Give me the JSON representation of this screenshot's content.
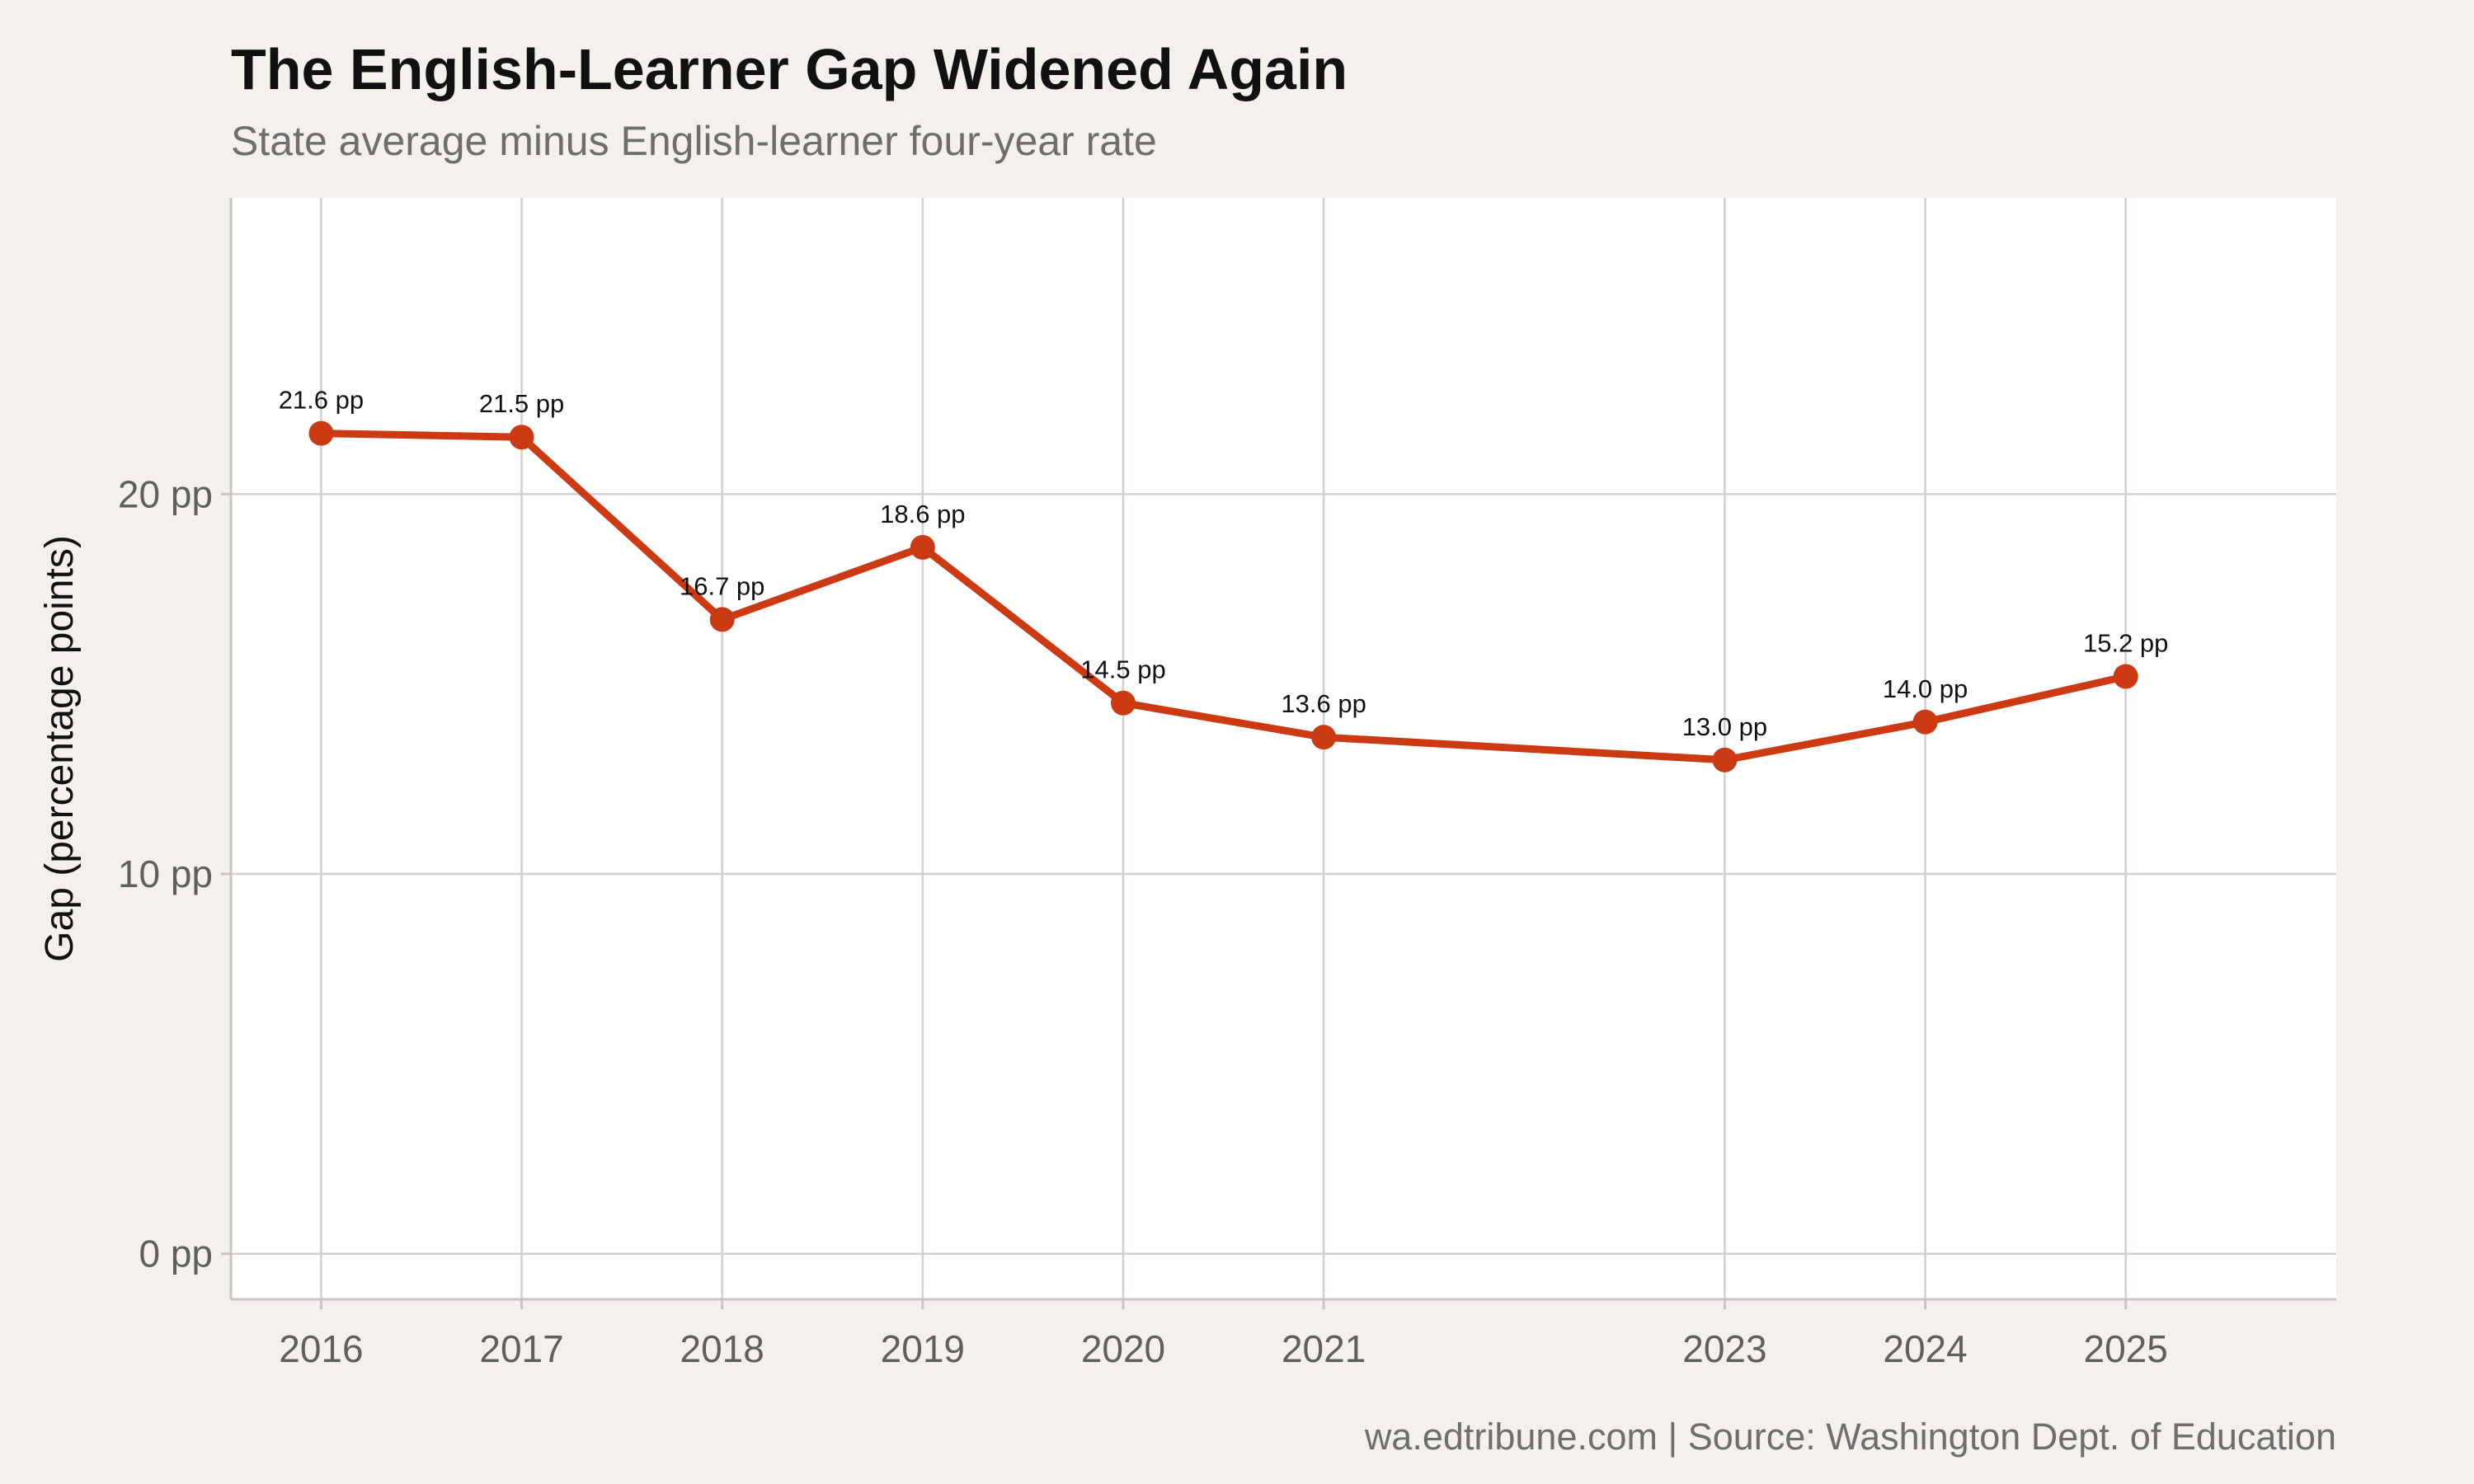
{
  "title": "The English-Learner Gap Widened Again",
  "subtitle": "State average minus English-learner four-year rate",
  "caption": "wa.edtribune.com | Source: Washington Dept. of Education",
  "colors": {
    "background": "#f4f1ec",
    "panel": "#ffffff",
    "grid": "#d3d0cb",
    "line": "#cc3a14"
  },
  "chart_data": {
    "type": "line",
    "ylabel": "Gap (percentage points)",
    "xlabel": "",
    "x": [
      2016,
      2017,
      2018,
      2019,
      2020,
      2021,
      2023,
      2024,
      2025
    ],
    "series": [
      {
        "values": [
          21.6,
          21.5,
          16.7,
          18.6,
          14.5,
          13.6,
          13.0,
          14.0,
          15.2
        ]
      }
    ],
    "data_labels": [
      "21.6 pp",
      "21.5 pp",
      "16.7 pp",
      "18.6 pp",
      "14.5 pp",
      "13.6 pp",
      "13.0 pp",
      "14.0 pp",
      "15.2 pp"
    ],
    "x_ticks": [
      "2016",
      "2017",
      "2018",
      "2019",
      "2020",
      "2021",
      "2023",
      "2024",
      "2025"
    ],
    "y_ticks": [
      {
        "value": 0,
        "label": "0 pp"
      },
      {
        "value": 10,
        "label": "10 pp"
      },
      {
        "value": 20,
        "label": "20 pp"
      }
    ],
    "xlim": [
      2015.55,
      2026.05
    ],
    "ylim": [
      -1.2,
      27.8
    ],
    "grid": true,
    "legend": "none"
  }
}
